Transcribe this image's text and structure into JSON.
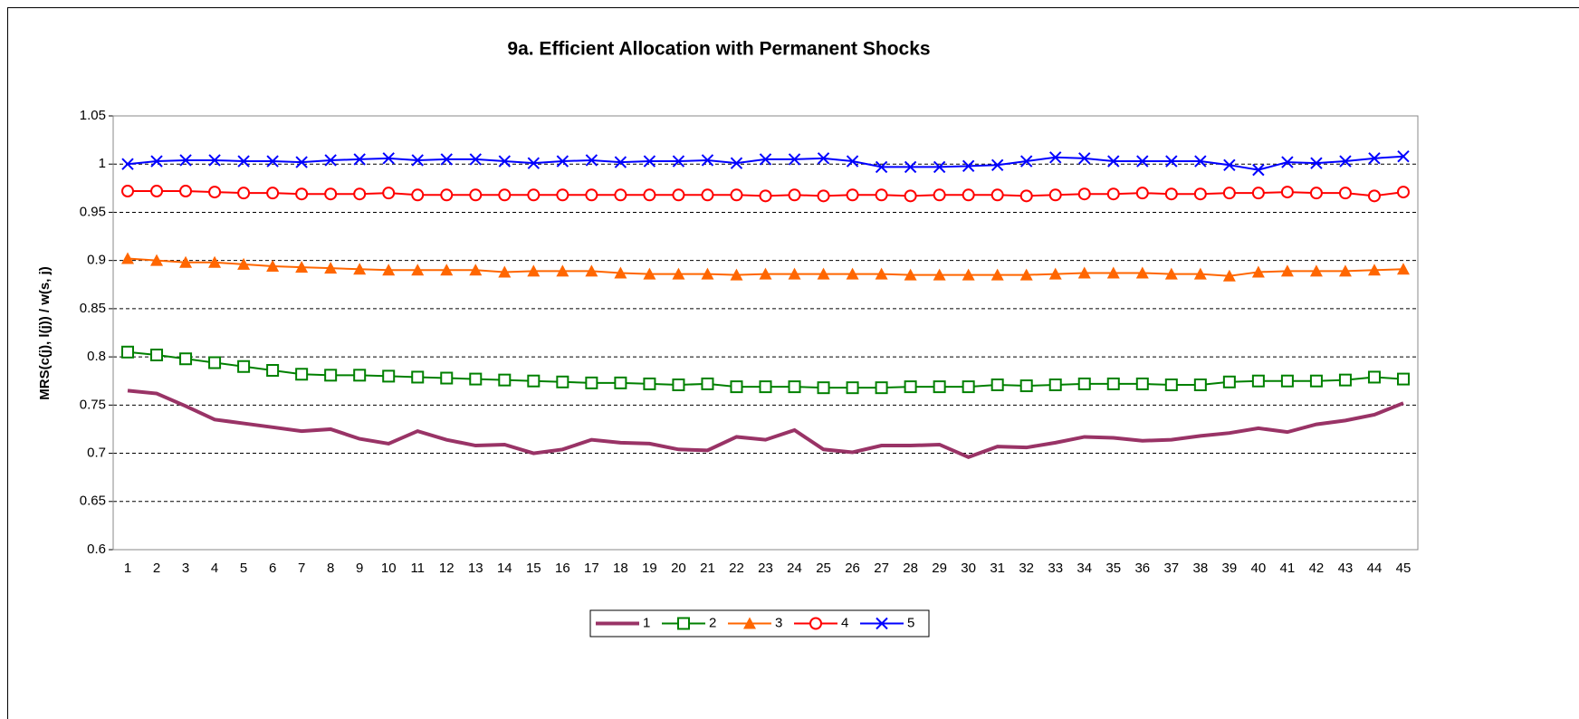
{
  "chart_data": {
    "type": "line",
    "title": "9a. Efficient Allocation with Permanent Shocks",
    "y_label": "MRS(c(j), l(j)) / w(s, j)",
    "categories": [
      "1",
      "2",
      "3",
      "4",
      "5",
      "6",
      "7",
      "8",
      "9",
      "10",
      "11",
      "12",
      "13",
      "14",
      "15",
      "16",
      "17",
      "18",
      "19",
      "20",
      "21",
      "22",
      "23",
      "24",
      "25",
      "26",
      "27",
      "28",
      "29",
      "30",
      "31",
      "32",
      "33",
      "34",
      "35",
      "36",
      "37",
      "38",
      "39",
      "40",
      "41",
      "42",
      "43",
      "44",
      "45"
    ],
    "ylim": [
      0.6,
      1.05
    ],
    "yticks": [
      0.6,
      0.65,
      0.7,
      0.75,
      0.8,
      0.85,
      0.9,
      0.95,
      1,
      1.05
    ],
    "grid": true,
    "legend": "bottom",
    "series": [
      {
        "name": "1",
        "color": "#993366",
        "marker": "none",
        "values": [
          0.765,
          0.762,
          0.749,
          0.735,
          0.731,
          0.727,
          0.723,
          0.725,
          0.715,
          0.71,
          0.723,
          0.714,
          0.708,
          0.709,
          0.7,
          0.704,
          0.714,
          0.711,
          0.71,
          0.704,
          0.703,
          0.717,
          0.714,
          0.724,
          0.704,
          0.701,
          0.708,
          0.708,
          0.709,
          0.696,
          0.707,
          0.706,
          0.711,
          0.717,
          0.716,
          0.713,
          0.714,
          0.718,
          0.721,
          0.726,
          0.722,
          0.73,
          0.734,
          0.74,
          0.752
        ]
      },
      {
        "name": "2",
        "color": "#008000",
        "marker": "square",
        "values": [
          0.805,
          0.802,
          0.798,
          0.794,
          0.79,
          0.786,
          0.782,
          0.781,
          0.781,
          0.78,
          0.779,
          0.778,
          0.777,
          0.776,
          0.775,
          0.774,
          0.773,
          0.773,
          0.772,
          0.771,
          0.772,
          0.769,
          0.769,
          0.769,
          0.768,
          0.768,
          0.768,
          0.769,
          0.769,
          0.769,
          0.771,
          0.77,
          0.771,
          0.772,
          0.772,
          0.772,
          0.771,
          0.771,
          0.774,
          0.775,
          0.775,
          0.775,
          0.776,
          0.779,
          0.777
        ]
      },
      {
        "name": "3",
        "color": "#ff6600",
        "marker": "triangle",
        "values": [
          0.902,
          0.9,
          0.898,
          0.898,
          0.896,
          0.894,
          0.893,
          0.892,
          0.891,
          0.89,
          0.89,
          0.89,
          0.89,
          0.888,
          0.889,
          0.889,
          0.889,
          0.887,
          0.886,
          0.886,
          0.886,
          0.885,
          0.886,
          0.886,
          0.886,
          0.886,
          0.886,
          0.885,
          0.885,
          0.885,
          0.885,
          0.885,
          0.886,
          0.887,
          0.887,
          0.887,
          0.886,
          0.886,
          0.884,
          0.888,
          0.889,
          0.889,
          0.889,
          0.89,
          0.891
        ]
      },
      {
        "name": "4",
        "color": "#ff0000",
        "marker": "circle",
        "values": [
          0.972,
          0.972,
          0.972,
          0.971,
          0.97,
          0.97,
          0.969,
          0.969,
          0.969,
          0.97,
          0.968,
          0.968,
          0.968,
          0.968,
          0.968,
          0.968,
          0.968,
          0.968,
          0.968,
          0.968,
          0.968,
          0.968,
          0.967,
          0.968,
          0.967,
          0.968,
          0.968,
          0.967,
          0.968,
          0.968,
          0.968,
          0.967,
          0.968,
          0.969,
          0.969,
          0.97,
          0.969,
          0.969,
          0.97,
          0.97,
          0.971,
          0.97,
          0.97,
          0.967,
          0.971
        ]
      },
      {
        "name": "5",
        "color": "#0000ff",
        "marker": "x",
        "values": [
          1.0,
          1.003,
          1.004,
          1.004,
          1.003,
          1.003,
          1.002,
          1.004,
          1.005,
          1.006,
          1.004,
          1.005,
          1.005,
          1.003,
          1.001,
          1.003,
          1.004,
          1.002,
          1.003,
          1.003,
          1.004,
          1.001,
          1.005,
          1.005,
          1.006,
          1.003,
          0.997,
          0.997,
          0.997,
          0.998,
          0.999,
          1.003,
          1.007,
          1.006,
          1.003,
          1.003,
          1.003,
          1.003,
          0.999,
          0.994,
          1.002,
          1.001,
          1.003,
          1.006,
          1.008
        ]
      }
    ]
  }
}
